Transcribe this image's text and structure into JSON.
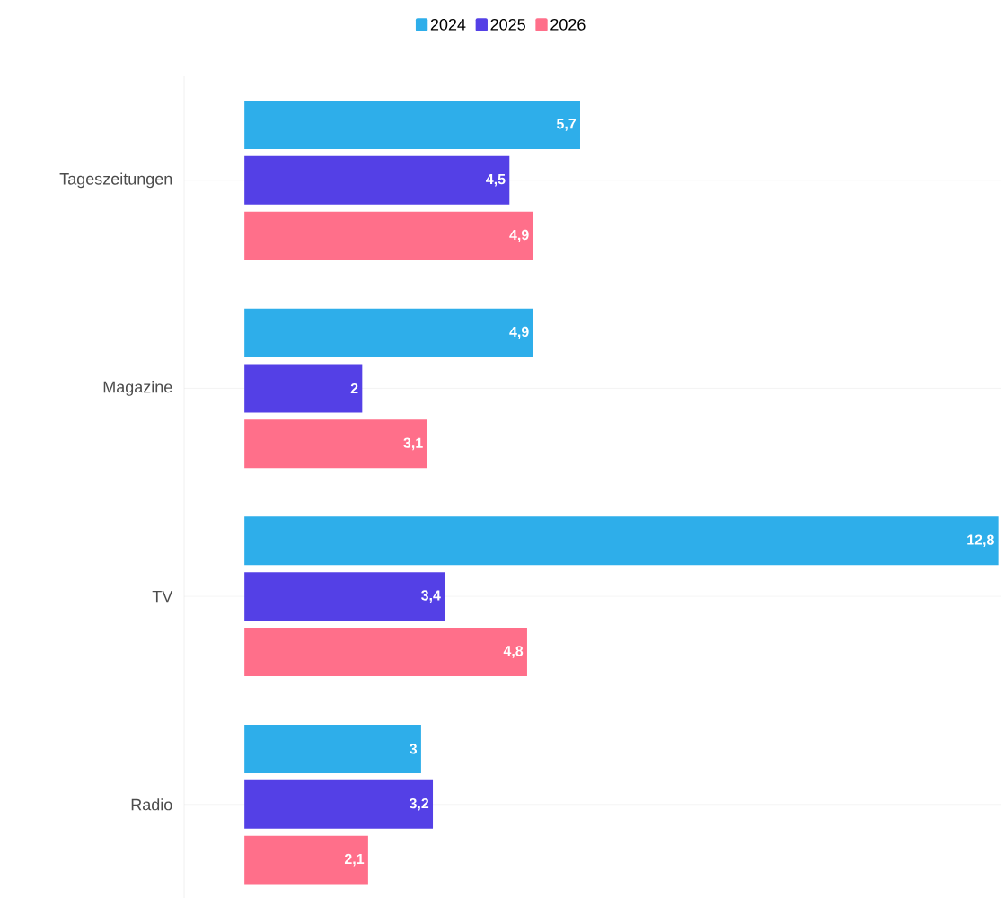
{
  "chart_data": {
    "type": "bar",
    "orientation": "horizontal",
    "categories": [
      "Tageszeitungen",
      "Magazine",
      "TV",
      "Radio"
    ],
    "series": [
      {
        "name": "2024",
        "color": "#2eaeea",
        "values": [
          5.7,
          4.9,
          12.8,
          3
        ],
        "value_labels": [
          "5,7",
          "4,9",
          "12,8",
          "3"
        ]
      },
      {
        "name": "2025",
        "color": "#5440e6",
        "values": [
          4.5,
          2,
          3.4,
          3.2
        ],
        "value_labels": [
          "4,5",
          "2",
          "3,4",
          "3,2"
        ]
      },
      {
        "name": "2026",
        "color": "#ff6f8a",
        "values": [
          4.9,
          3.1,
          4.8,
          2.1
        ],
        "value_labels": [
          "4,9",
          "3,1",
          "4,8",
          "2,1"
        ]
      }
    ],
    "grid": "y",
    "legend": "top"
  }
}
